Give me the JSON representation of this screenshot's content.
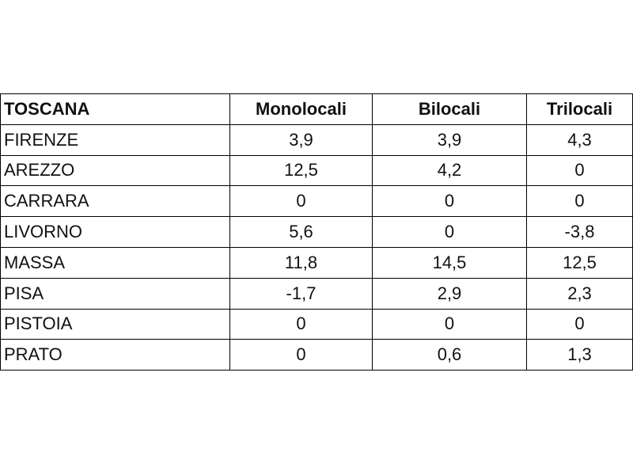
{
  "table": {
    "header": [
      "TOSCANA",
      "Monolocali",
      "Bilocali",
      "Trilocali"
    ],
    "rows": [
      [
        "FIRENZE",
        "3,9",
        "3,9",
        "4,3"
      ],
      [
        "AREZZO",
        "12,5",
        "4,2",
        "0"
      ],
      [
        "CARRARA",
        "0",
        "0",
        "0"
      ],
      [
        "LIVORNO",
        "5,6",
        "0",
        "-3,8"
      ],
      [
        "MASSA",
        "11,8",
        "14,5",
        "12,5"
      ],
      [
        "PISA",
        "-1,7",
        "2,9",
        "2,3"
      ],
      [
        "PISTOIA",
        "0",
        "0",
        "0"
      ],
      [
        "PRATO",
        "0",
        "0,6",
        "1,3"
      ]
    ]
  }
}
